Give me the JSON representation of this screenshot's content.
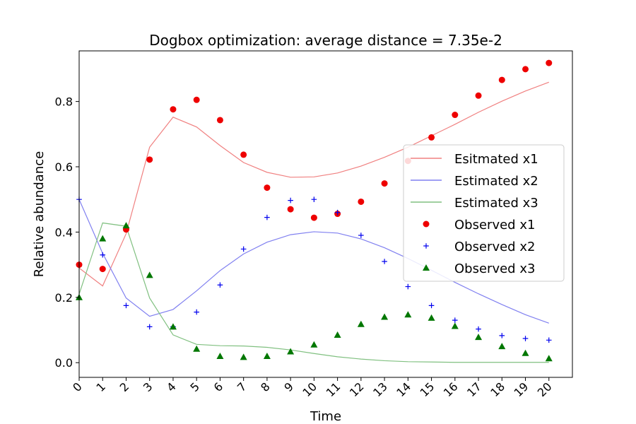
{
  "chart_data": {
    "type": "line",
    "title": "Dogbox optimization: average distance = 7.35e-2",
    "xlabel": "Time",
    "ylabel": "Relative abundance",
    "xlim": [
      0,
      21
    ],
    "ylim": [
      -0.045,
      0.955
    ],
    "x_ticks": [
      0,
      1,
      2,
      3,
      4,
      5,
      6,
      7,
      8,
      9,
      10,
      11,
      12,
      13,
      14,
      15,
      16,
      17,
      18,
      19,
      20
    ],
    "y_ticks": [
      0.0,
      0.2,
      0.4,
      0.6,
      0.8
    ],
    "y_tick_labels": [
      "0.0",
      "0.2",
      "0.4",
      "0.6",
      "0.8"
    ],
    "grid": false,
    "legend_position": "right",
    "x": [
      0,
      1,
      2,
      3,
      4,
      5,
      6,
      7,
      8,
      9,
      10,
      11,
      12,
      13,
      14,
      15,
      16,
      17,
      18,
      19,
      20
    ],
    "series": [
      {
        "name": "Esitmated x1",
        "kind": "line",
        "color": "#f08080",
        "values": [
          0.29,
          0.235,
          0.395,
          0.66,
          0.752,
          0.722,
          0.665,
          0.613,
          0.583,
          0.568,
          0.569,
          0.581,
          0.602,
          0.629,
          0.66,
          0.695,
          0.73,
          0.767,
          0.801,
          0.832,
          0.859
        ]
      },
      {
        "name": "Estimated x2",
        "kind": "line",
        "color": "#8080f0",
        "values": [
          0.5,
          0.335,
          0.198,
          0.142,
          0.163,
          0.22,
          0.282,
          0.333,
          0.369,
          0.392,
          0.401,
          0.397,
          0.379,
          0.352,
          0.319,
          0.283,
          0.246,
          0.211,
          0.178,
          0.147,
          0.121
        ]
      },
      {
        "name": "Estimated x3",
        "kind": "line",
        "color": "#80c080",
        "values": [
          0.21,
          0.428,
          0.418,
          0.198,
          0.085,
          0.056,
          0.052,
          0.051,
          0.047,
          0.039,
          0.028,
          0.018,
          0.011,
          0.006,
          0.003,
          0.002,
          0.001,
          0.001,
          0.001,
          0.001,
          0.001
        ]
      },
      {
        "name": "Observed x1",
        "kind": "scatter",
        "marker": "circle",
        "color": "#ee0000",
        "values": [
          0.3,
          0.287,
          0.408,
          0.622,
          0.776,
          0.805,
          0.743,
          0.637,
          0.536,
          0.47,
          0.444,
          0.456,
          0.493,
          0.549,
          0.618,
          0.69,
          0.759,
          0.818,
          0.866,
          0.899,
          0.918
        ]
      },
      {
        "name": "Observed x2",
        "kind": "scatter",
        "marker": "plus",
        "color": "#0000ee",
        "values": [
          0.5,
          0.33,
          0.175,
          0.11,
          0.11,
          0.155,
          0.238,
          0.348,
          0.445,
          0.497,
          0.5,
          0.46,
          0.39,
          0.31,
          0.233,
          0.175,
          0.13,
          0.103,
          0.083,
          0.074,
          0.069
        ]
      },
      {
        "name": "Observed x3",
        "kind": "scatter",
        "marker": "triangle",
        "color": "#007700",
        "values": [
          0.2,
          0.38,
          0.42,
          0.268,
          0.11,
          0.042,
          0.02,
          0.017,
          0.02,
          0.034,
          0.055,
          0.085,
          0.118,
          0.14,
          0.147,
          0.137,
          0.112,
          0.078,
          0.05,
          0.029,
          0.013
        ]
      }
    ]
  }
}
